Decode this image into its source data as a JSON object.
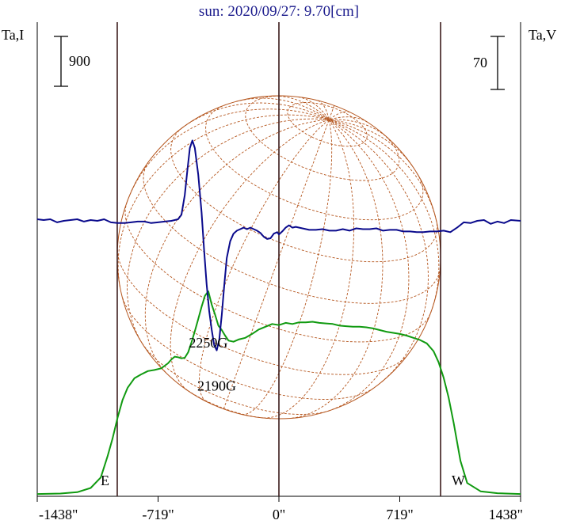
{
  "chart_data": {
    "type": "line",
    "title": "sun: 2020/09/27: 9.70[cm]",
    "left_axis_label": "Ta,I",
    "right_axis_label": "Ta,V",
    "left_scale_bar_value": "900",
    "right_scale_bar_value": "70",
    "xlim": [
      -1438,
      1438
    ],
    "x_ticks": [
      {
        "value": -1438,
        "label": "-1438\""
      },
      {
        "value": -719,
        "label": "-719\""
      },
      {
        "value": 0,
        "label": "0\""
      },
      {
        "value": 719,
        "label": "719\""
      },
      {
        "value": 1438,
        "label": "1438\""
      }
    ],
    "limb_markers": [
      {
        "x": -962,
        "label": "E"
      },
      {
        "x": 0,
        "label": ""
      },
      {
        "x": 962,
        "label": "W"
      }
    ],
    "annotations": [
      {
        "text": "2250G",
        "x": -560,
        "series": "I",
        "at": "peak"
      },
      {
        "text": "2190G",
        "x": -330,
        "series": "V",
        "at": "trough"
      }
    ],
    "colors": {
      "I": "#109a10",
      "V": "#0a0a8c",
      "grid": "#b5561e",
      "limb": "#3a1a1a",
      "title": "#1a1a8c"
    },
    "series": [
      {
        "key": "I",
        "color": "#109a10",
        "scale_units_per_bar": 900,
        "x": [
          -1438,
          -1300,
          -1200,
          -1120,
          -1060,
          -1020,
          -990,
          -960,
          -930,
          -900,
          -860,
          -820,
          -780,
          -740,
          -700,
          -660,
          -640,
          -620,
          -600,
          -580,
          -560,
          -540,
          -520,
          -500,
          -480,
          -460,
          -440,
          -420,
          -400,
          -380,
          -360,
          -340,
          -320,
          -300,
          -270,
          -240,
          -200,
          -160,
          -120,
          -80,
          -40,
          0,
          40,
          80,
          120,
          160,
          200,
          240,
          280,
          320,
          360,
          400,
          440,
          480,
          520,
          560,
          600,
          640,
          680,
          720,
          760,
          800,
          840,
          880,
          920,
          950,
          980,
          1010,
          1040,
          1080,
          1120,
          1200,
          1300,
          1438
        ],
        "values": [
          42,
          50,
          75,
          150,
          340,
          720,
          1040,
          1420,
          1740,
          1960,
          2130,
          2200,
          2260,
          2280,
          2310,
          2400,
          2470,
          2520,
          2510,
          2490,
          2500,
          2600,
          2780,
          2980,
          3200,
          3420,
          3620,
          3700,
          3460,
          3280,
          3080,
          3000,
          2900,
          2810,
          2790,
          2830,
          2860,
          2930,
          3010,
          3060,
          3110,
          3090,
          3130,
          3110,
          3140,
          3140,
          3150,
          3130,
          3120,
          3110,
          3080,
          3070,
          3060,
          3060,
          3050,
          3030,
          3000,
          2970,
          2950,
          2930,
          2900,
          2860,
          2820,
          2760,
          2620,
          2420,
          2140,
          1780,
          1320,
          640,
          240,
          90,
          55,
          42
        ]
      },
      {
        "key": "V",
        "color": "#0a0a8c",
        "scale_units_per_bar": 70,
        "x": [
          -1438,
          -1400,
          -1360,
          -1320,
          -1280,
          -1240,
          -1200,
          -1160,
          -1120,
          -1080,
          -1040,
          -1000,
          -960,
          -920,
          -880,
          -840,
          -800,
          -760,
          -720,
          -680,
          -640,
          -600,
          -580,
          -560,
          -545,
          -530,
          -515,
          -500,
          -480,
          -460,
          -445,
          -430,
          -415,
          -400,
          -385,
          -370,
          -355,
          -340,
          -325,
          -310,
          -290,
          -270,
          -250,
          -230,
          -210,
          -190,
          -170,
          -150,
          -130,
          -110,
          -90,
          -70,
          -50,
          -30,
          -10,
          0,
          20,
          40,
          60,
          80,
          100,
          140,
          180,
          220,
          260,
          300,
          340,
          380,
          420,
          460,
          500,
          540,
          580,
          620,
          660,
          700,
          740,
          780,
          820,
          860,
          900,
          940,
          980,
          1020,
          1060,
          1100,
          1140,
          1180,
          1220,
          1260,
          1300,
          1340,
          1380,
          1438
        ],
        "values": [
          1,
          0,
          1,
          -3,
          -1,
          0,
          1,
          -2,
          0,
          -1,
          1,
          -3,
          -4,
          -4,
          -3,
          -2,
          -2,
          -4,
          -3,
          -2,
          -1,
          1,
          7,
          33,
          65,
          95,
          105,
          95,
          60,
          10,
          -40,
          -85,
          -120,
          -145,
          -165,
          -172,
          -158,
          -125,
          -85,
          -50,
          -28,
          -18,
          -14,
          -12,
          -10,
          -12,
          -10,
          -12,
          -14,
          -17,
          -22,
          -25,
          -24,
          -18,
          -16,
          -19,
          -15,
          -10,
          -7,
          -10,
          -9,
          -11,
          -13,
          -13,
          -12,
          -14,
          -14,
          -12,
          -14,
          -11,
          -12,
          -12,
          -11,
          -14,
          -13,
          -13,
          -15,
          -15,
          -16,
          -16,
          -15,
          -15,
          -14,
          -16,
          -10,
          -3,
          -4,
          -1,
          0,
          -5,
          -2,
          -4,
          0,
          -1
        ]
      }
    ]
  }
}
